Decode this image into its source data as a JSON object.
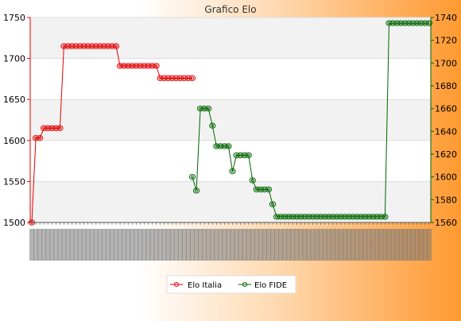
{
  "chart_data": {
    "type": "line",
    "title": "Grafico Elo",
    "y_left": {
      "min": 1500,
      "max": 1750,
      "ticks": [
        1500,
        1550,
        1600,
        1650,
        1700,
        1750
      ]
    },
    "y_right": {
      "min": 1560,
      "max": 1740,
      "ticks": [
        1560,
        1580,
        1600,
        1620,
        1640,
        1660,
        1680,
        1700,
        1720,
        1740
      ]
    },
    "grid": true,
    "legend_position": "bottom",
    "series": [
      {
        "name": "Elo Italia",
        "axis": "left",
        "color": "#e00000",
        "values": [
          {
            "x": 0,
            "y": 1500
          },
          {
            "x": 1,
            "y": 1603
          },
          {
            "x": 2,
            "y": 1603
          },
          {
            "x": 3,
            "y": 1615
          },
          {
            "x": 4,
            "y": 1615
          },
          {
            "x": 5,
            "y": 1615
          },
          {
            "x": 6,
            "y": 1615
          },
          {
            "x": 7,
            "y": 1615
          },
          {
            "x": 8,
            "y": 1715
          },
          {
            "x": 9,
            "y": 1715
          },
          {
            "x": 10,
            "y": 1715
          },
          {
            "x": 11,
            "y": 1715
          },
          {
            "x": 12,
            "y": 1715
          },
          {
            "x": 13,
            "y": 1715
          },
          {
            "x": 14,
            "y": 1715
          },
          {
            "x": 15,
            "y": 1715
          },
          {
            "x": 16,
            "y": 1715
          },
          {
            "x": 17,
            "y": 1715
          },
          {
            "x": 18,
            "y": 1715
          },
          {
            "x": 19,
            "y": 1715
          },
          {
            "x": 20,
            "y": 1715
          },
          {
            "x": 21,
            "y": 1715
          },
          {
            "x": 22,
            "y": 1691
          },
          {
            "x": 23,
            "y": 1691
          },
          {
            "x": 24,
            "y": 1691
          },
          {
            "x": 25,
            "y": 1691
          },
          {
            "x": 26,
            "y": 1691
          },
          {
            "x": 27,
            "y": 1691
          },
          {
            "x": 28,
            "y": 1691
          },
          {
            "x": 29,
            "y": 1691
          },
          {
            "x": 30,
            "y": 1691
          },
          {
            "x": 31,
            "y": 1691
          },
          {
            "x": 32,
            "y": 1676
          },
          {
            "x": 33,
            "y": 1676
          },
          {
            "x": 34,
            "y": 1676
          },
          {
            "x": 35,
            "y": 1676
          },
          {
            "x": 36,
            "y": 1676
          },
          {
            "x": 37,
            "y": 1676
          },
          {
            "x": 38,
            "y": 1676
          },
          {
            "x": 39,
            "y": 1676
          },
          {
            "x": 40,
            "y": 1676
          }
        ]
      },
      {
        "name": "Elo FIDE",
        "axis": "right",
        "color": "#006400",
        "values": [
          {
            "x": 40,
            "y": 1600
          },
          {
            "x": 41,
            "y": 1588
          },
          {
            "x": 42,
            "y": 1660
          },
          {
            "x": 43,
            "y": 1660
          },
          {
            "x": 44,
            "y": 1660
          },
          {
            "x": 45,
            "y": 1645
          },
          {
            "x": 46,
            "y": 1627
          },
          {
            "x": 47,
            "y": 1627
          },
          {
            "x": 48,
            "y": 1627
          },
          {
            "x": 49,
            "y": 1627
          },
          {
            "x": 50,
            "y": 1605
          },
          {
            "x": 51,
            "y": 1619
          },
          {
            "x": 52,
            "y": 1619
          },
          {
            "x": 53,
            "y": 1619
          },
          {
            "x": 54,
            "y": 1619
          },
          {
            "x": 55,
            "y": 1597
          },
          {
            "x": 56,
            "y": 1589
          },
          {
            "x": 57,
            "y": 1589
          },
          {
            "x": 58,
            "y": 1589
          },
          {
            "x": 59,
            "y": 1589
          },
          {
            "x": 60,
            "y": 1576
          },
          {
            "x": 61,
            "y": 1565
          },
          {
            "x": 62,
            "y": 1565
          },
          {
            "x": 63,
            "y": 1565
          },
          {
            "x": 64,
            "y": 1565
          },
          {
            "x": 65,
            "y": 1565
          },
          {
            "x": 66,
            "y": 1565
          },
          {
            "x": 67,
            "y": 1565
          },
          {
            "x": 68,
            "y": 1565
          },
          {
            "x": 69,
            "y": 1565
          },
          {
            "x": 70,
            "y": 1565
          },
          {
            "x": 71,
            "y": 1565
          },
          {
            "x": 72,
            "y": 1565
          },
          {
            "x": 73,
            "y": 1565
          },
          {
            "x": 74,
            "y": 1565
          },
          {
            "x": 75,
            "y": 1565
          },
          {
            "x": 76,
            "y": 1565
          },
          {
            "x": 77,
            "y": 1565
          },
          {
            "x": 78,
            "y": 1565
          },
          {
            "x": 79,
            "y": 1565
          },
          {
            "x": 80,
            "y": 1565
          },
          {
            "x": 81,
            "y": 1565
          },
          {
            "x": 82,
            "y": 1565
          },
          {
            "x": 83,
            "y": 1565
          },
          {
            "x": 84,
            "y": 1565
          },
          {
            "x": 85,
            "y": 1565
          },
          {
            "x": 86,
            "y": 1565
          },
          {
            "x": 87,
            "y": 1565
          },
          {
            "x": 88,
            "y": 1565
          },
          {
            "x": 89,
            "y": 1735
          },
          {
            "x": 90,
            "y": 1735
          },
          {
            "x": 91,
            "y": 1735
          },
          {
            "x": 92,
            "y": 1735
          },
          {
            "x": 93,
            "y": 1735
          },
          {
            "x": 94,
            "y": 1735
          },
          {
            "x": 95,
            "y": 1735
          },
          {
            "x": 96,
            "y": 1735
          },
          {
            "x": 97,
            "y": 1735
          },
          {
            "x": 98,
            "y": 1735
          },
          {
            "x": 99,
            "y": 1735
          }
        ]
      }
    ],
    "x_count": 100
  }
}
